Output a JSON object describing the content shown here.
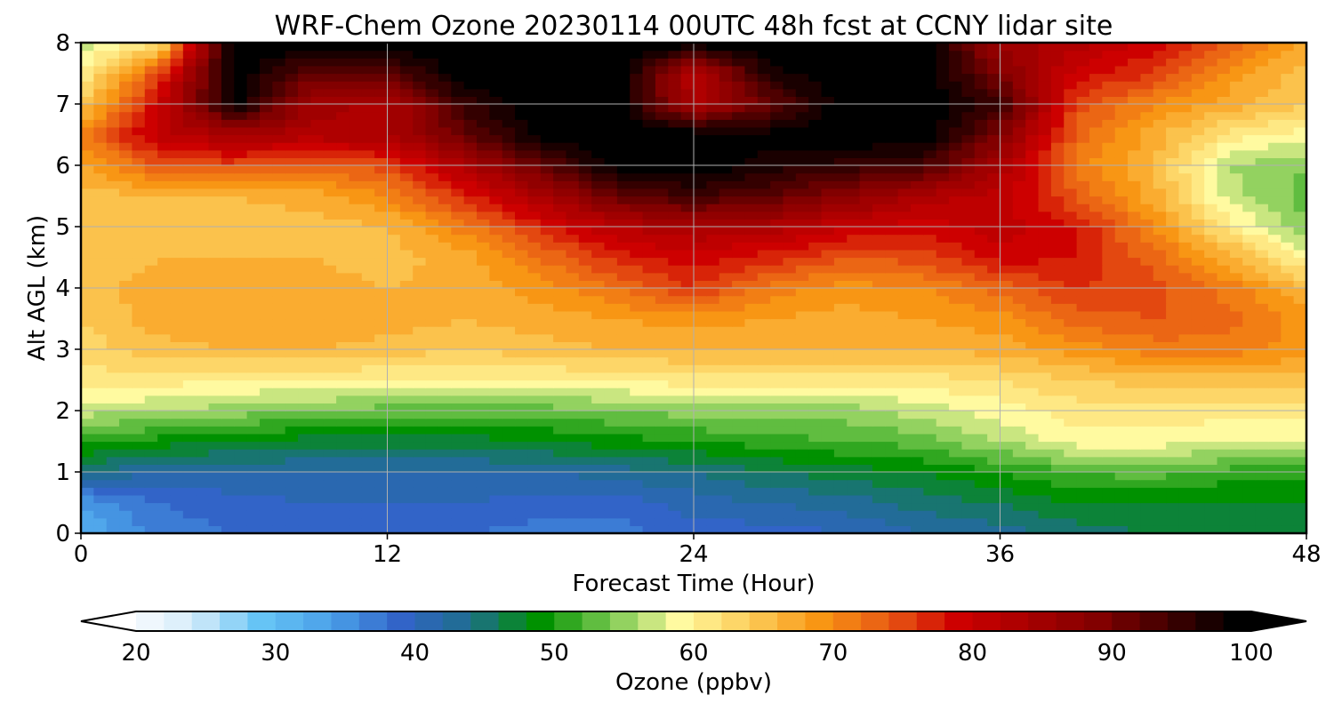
{
  "chart_data": {
    "type": "heatmap",
    "title": "WRF-Chem Ozone  20230114 00UTC 48h fcst at CCNY lidar site",
    "xlabel": "Forecast Time (Hour)",
    "ylabel": "Alt AGL (km)",
    "xlim": [
      0,
      48
    ],
    "ylim": [
      0,
      8
    ],
    "x_ticks": [
      "0",
      "12",
      "24",
      "36",
      "48"
    ],
    "y_ticks": [
      "0",
      "1",
      "2",
      "3",
      "4",
      "5",
      "6",
      "7",
      "8"
    ],
    "grid": true,
    "x_hours": [
      0,
      3,
      6,
      9,
      12,
      15,
      18,
      21,
      24,
      27,
      30,
      33,
      36,
      39,
      42,
      45,
      48
    ],
    "altitudes_km": [
      0,
      0.5,
      1,
      1.5,
      2,
      2.5,
      3,
      3.5,
      4,
      4.5,
      5,
      5.5,
      6,
      6.5,
      7,
      7.5,
      8
    ],
    "ozone_ppbv": [
      [
        33,
        38,
        39,
        40,
        39,
        39,
        38,
        38,
        40,
        40,
        41,
        43,
        44,
        46,
        47,
        47,
        48
      ],
      [
        35,
        39,
        40,
        41,
        41,
        41,
        40,
        40,
        42,
        43,
        44,
        46,
        47,
        49,
        49,
        49,
        49
      ],
      [
        45,
        43,
        43,
        43,
        43,
        43,
        43,
        44,
        45,
        47,
        48,
        49,
        51,
        53,
        54,
        52,
        52
      ],
      [
        52,
        50,
        49,
        48,
        48,
        48,
        49,
        50,
        51,
        52,
        53,
        54,
        57,
        60,
        60,
        59,
        59
      ],
      [
        58,
        57,
        56,
        55,
        54,
        54,
        54,
        55,
        56,
        56,
        56,
        58,
        60,
        62,
        62,
        62,
        62
      ],
      [
        62,
        62,
        61,
        61,
        61,
        61,
        61,
        61,
        62,
        62,
        62,
        62,
        63,
        65,
        66,
        66,
        66
      ],
      [
        64,
        66,
        67,
        67,
        66,
        65,
        66,
        67,
        67,
        67,
        67,
        67,
        68,
        70,
        72,
        72,
        70
      ],
      [
        65,
        68,
        69,
        69,
        68,
        67,
        68,
        69,
        70,
        69,
        68,
        69,
        70,
        74,
        75,
        74,
        70
      ],
      [
        66,
        68,
        69,
        68,
        67,
        68,
        70,
        73,
        77,
        72,
        70,
        71,
        74,
        77,
        76,
        72,
        67
      ],
      [
        65,
        67,
        67,
        67,
        66,
        68,
        73,
        78,
        80,
        78,
        75,
        76,
        80,
        79,
        74,
        68,
        60
      ],
      [
        65,
        66,
        66,
        66,
        67,
        72,
        78,
        83,
        85,
        84,
        81,
        80,
        82,
        79,
        71,
        62,
        55
      ],
      [
        66,
        67,
        67,
        68,
        71,
        78,
        85,
        92,
        95,
        93,
        89,
        84,
        82,
        75,
        68,
        58,
        54
      ],
      [
        68,
        75,
        76,
        74,
        76,
        84,
        92,
        100,
        101,
        98,
        96,
        95,
        85,
        72,
        67,
        57,
        55
      ],
      [
        72,
        82,
        85,
        84,
        85,
        92,
        100,
        101,
        101,
        100,
        101,
        101,
        90,
        74,
        68,
        62,
        60
      ],
      [
        65,
        80,
        100,
        86,
        84,
        96,
        101,
        101,
        84,
        92,
        101,
        101,
        96,
        76,
        71,
        68,
        65
      ],
      [
        61,
        76,
        101,
        92,
        93,
        101,
        101,
        101,
        83,
        98,
        101,
        101,
        90,
        80,
        77,
        70,
        66
      ],
      [
        58,
        62,
        101,
        101,
        101,
        101,
        101,
        101,
        101,
        101,
        101,
        101,
        86,
        84,
        80,
        74,
        68
      ]
    ],
    "colorbar": {
      "label": "Ozone  (ppbv)",
      "min": 20,
      "max": 100,
      "ticks": [
        "20",
        "30",
        "40",
        "50",
        "60",
        "70",
        "80",
        "90",
        "100"
      ],
      "extend": "both"
    }
  }
}
